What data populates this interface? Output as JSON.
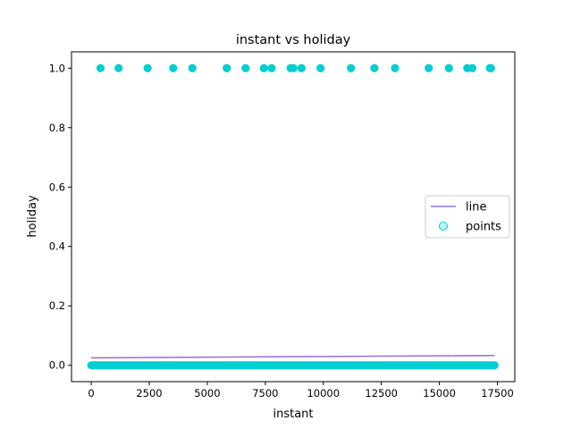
{
  "chart_data": {
    "type": "scatter",
    "title": "instant vs holiday",
    "xlabel": "instant",
    "ylabel": "holiday",
    "xlim": [
      -850,
      18250
    ],
    "ylim": [
      -0.055,
      1.055
    ],
    "xticks": [
      0,
      2500,
      5000,
      7500,
      10000,
      12500,
      15000,
      17500
    ],
    "yticks": [
      0.0,
      0.2,
      0.4,
      0.6,
      0.8,
      1.0
    ],
    "xtick_labels": [
      "0",
      "2500",
      "5000",
      "7500",
      "10000",
      "12500",
      "15000",
      "17500"
    ],
    "ytick_labels": [
      "0.0",
      "0.2",
      "0.4",
      "0.6",
      "0.8",
      "1.0"
    ],
    "grid": false,
    "legend": {
      "placement": "center-right",
      "entries": [
        "line",
        "points"
      ]
    },
    "colors": {
      "line": "#9370DB",
      "points": "#00CED1"
    },
    "series": [
      {
        "name": "line",
        "type": "line",
        "x": [
          0,
          17379
        ],
        "y": [
          0.025,
          0.033
        ]
      },
      {
        "name": "points",
        "type": "scatter",
        "holiday_one_x": [
          400,
          1180,
          2430,
          3530,
          4360,
          5840,
          6650,
          7440,
          7770,
          8590,
          8710,
          9060,
          9880,
          11190,
          12200,
          13090,
          14540,
          15410,
          16200,
          16420,
          17180,
          17220
        ],
        "holiday_zero_x_range": [
          0,
          17379
        ],
        "holiday_zero_y": 0
      }
    ]
  }
}
